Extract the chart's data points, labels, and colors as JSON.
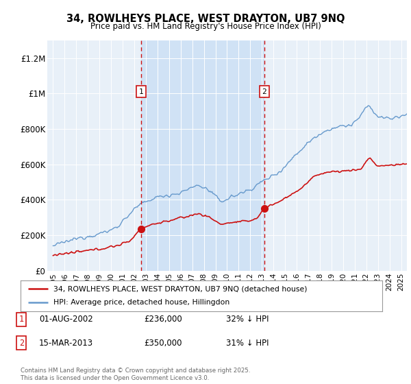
{
  "title": "34, ROWLHEYS PLACE, WEST DRAYTON, UB7 9NQ",
  "subtitle": "Price paid vs. HM Land Registry's House Price Index (HPI)",
  "background_color": "#e8f0f8",
  "shaded_color": "#d0e2f5",
  "ylabel_ticks": [
    "£0",
    "£200K",
    "£400K",
    "£600K",
    "£800K",
    "£1M",
    "£1.2M"
  ],
  "ytick_values": [
    0,
    200000,
    400000,
    600000,
    800000,
    1000000,
    1200000
  ],
  "ylim": [
    0,
    1300000
  ],
  "xlim_start": 1994.5,
  "xlim_end": 2025.5,
  "sale1_x": 2002.583,
  "sale1_y": 236000,
  "sale2_x": 2013.208,
  "sale2_y": 350000,
  "legend_line1": "34, ROWLHEYS PLACE, WEST DRAYTON, UB7 9NQ (detached house)",
  "legend_line2": "HPI: Average price, detached house, Hillingdon",
  "label1_date": "01-AUG-2002",
  "label1_price": "£236,000",
  "label1_hpi": "32% ↓ HPI",
  "label2_date": "15-MAR-2013",
  "label2_price": "£350,000",
  "label2_hpi": "31% ↓ HPI",
  "footer": "Contains HM Land Registry data © Crown copyright and database right 2025.\nThis data is licensed under the Open Government Licence v3.0.",
  "red_line_color": "#cc1111",
  "blue_line_color": "#6699cc",
  "dashed_color": "#cc1111",
  "xticks": [
    1995,
    1996,
    1997,
    1998,
    1999,
    2000,
    2001,
    2002,
    2003,
    2004,
    2005,
    2006,
    2007,
    2008,
    2009,
    2010,
    2011,
    2012,
    2013,
    2014,
    2015,
    2016,
    2017,
    2018,
    2019,
    2020,
    2021,
    2022,
    2023,
    2024,
    2025
  ]
}
